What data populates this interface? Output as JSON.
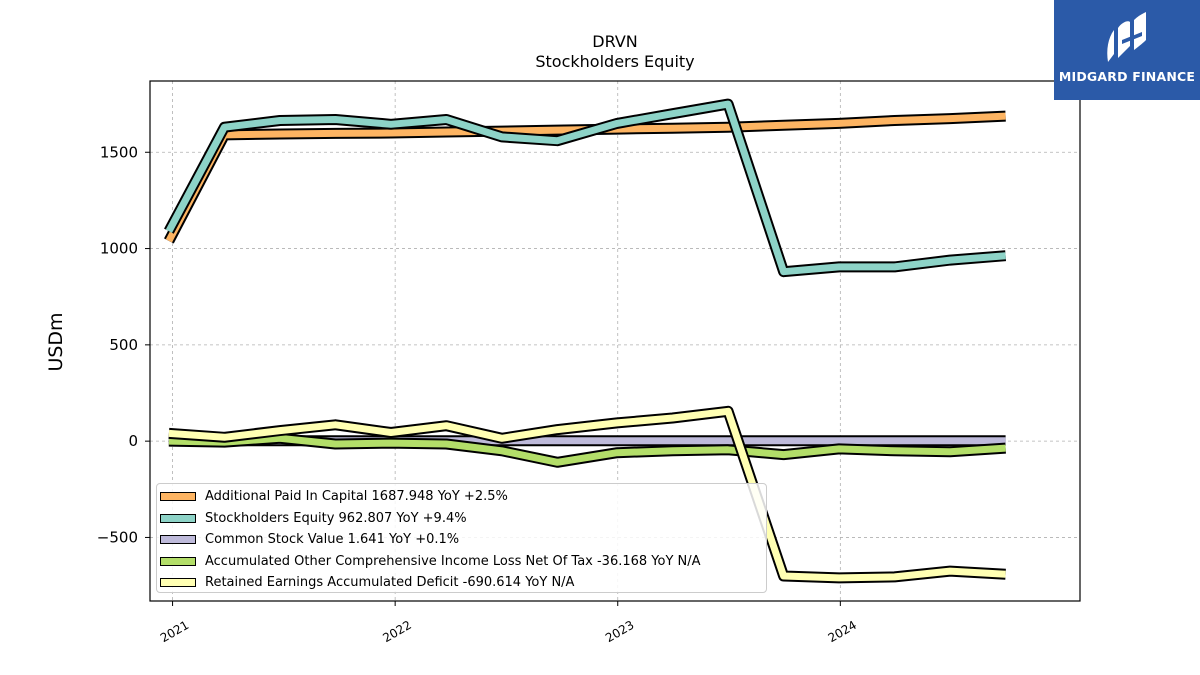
{
  "chart_data": {
    "type": "line",
    "title": "DRVN",
    "subtitle": "Stockholders  Equity",
    "ylabel": "USDm",
    "xlabel": "",
    "xlim": [
      "2020-11-25",
      "2025-01-28"
    ],
    "ylim": [
      -830,
      1870
    ],
    "x_ticks": [
      "2021",
      "2022",
      "2023",
      "2024"
    ],
    "y_ticks": [
      1500,
      1000,
      500,
      0,
      -500
    ],
    "y_tick_labels": [
      "1500",
      "1000",
      "500",
      "0",
      "−500"
    ],
    "grid": true,
    "legend_position": "lower-left",
    "x": [
      "2020-12-26",
      "2021-03-27",
      "2021-06-26",
      "2021-09-25",
      "2021-12-25",
      "2022-03-26",
      "2022-06-25",
      "2022-09-24",
      "2022-12-31",
      "2023-04-01",
      "2023-07-01",
      "2023-09-30",
      "2023-12-30",
      "2024-03-30",
      "2024-06-29",
      "2024-09-28"
    ],
    "series": [
      {
        "name": "Additional Paid In Capital",
        "legend_label": "Additional Paid In Capital  1687.948 YoY +2.5%",
        "color": "#fdb462",
        "values": [
          1040,
          1590,
          1595,
          1598,
          1600,
          1605,
          1610,
          1615,
          1620,
          1625,
          1630,
          1640,
          1650,
          1665,
          1675,
          1688
        ]
      },
      {
        "name": "Stockholders Equity",
        "legend_label": "Stockholders Equity  962.807 YoY +9.4%",
        "color": "#8dd3c7",
        "values": [
          1090,
          1630,
          1665,
          1670,
          1645,
          1670,
          1580,
          1560,
          1650,
          1700,
          1750,
          880,
          905,
          905,
          940,
          963
        ]
      },
      {
        "name": "Common Stock Value",
        "legend_label": "Common Stock Value  1.641 YoY +0.1%",
        "color": "#bebada",
        "values": [
          1.6,
          1.6,
          1.6,
          1.6,
          1.6,
          1.6,
          1.6,
          1.6,
          1.6,
          1.6,
          1.6,
          1.6,
          1.6,
          1.6,
          1.6,
          1.641
        ]
      },
      {
        "name": "Accumulated Other Comprehensive Income Loss Net Of Tax",
        "legend_label": "Accumulated Other Comprehensive Income Loss Net Of Tax  -36.168 YoY N/A",
        "color": "#b3de69",
        "values": [
          0,
          -5,
          15,
          -15,
          -10,
          -15,
          -50,
          -110,
          -60,
          -50,
          -45,
          -70,
          -40,
          -50,
          -55,
          -36
        ]
      },
      {
        "name": "Retained Earnings Accumulated Deficit",
        "legend_label": "Retained Earnings Accumulated Deficit  -690.614 YoY N/A",
        "color": "#ffffb3",
        "values": [
          40,
          20,
          55,
          85,
          45,
          80,
          15,
          60,
          95,
          120,
          155,
          -700,
          -710,
          -705,
          -675,
          -691
        ]
      }
    ]
  },
  "logo": {
    "text": "MIDGARD FINANCE"
  }
}
